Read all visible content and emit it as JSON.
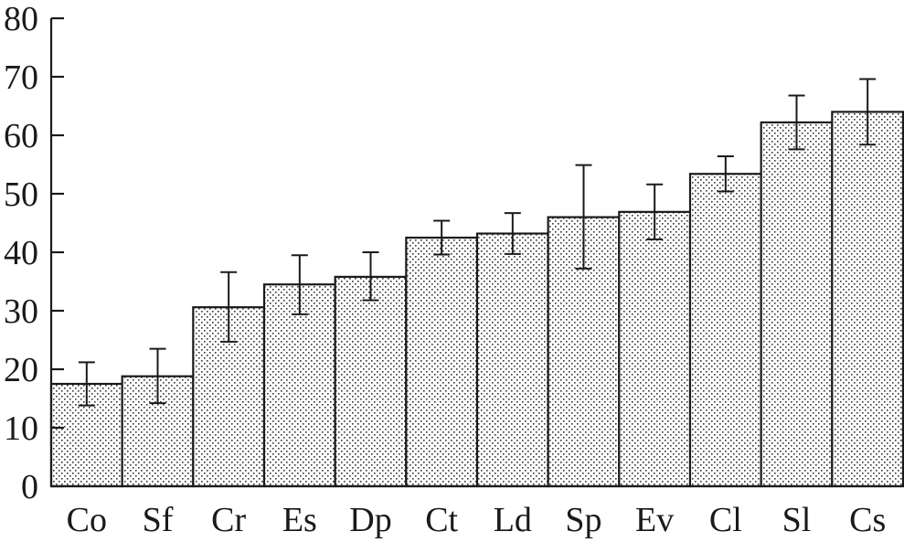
{
  "chart_data": {
    "type": "bar",
    "title": "",
    "xlabel": "",
    "ylabel": "",
    "ylim": [
      0,
      80
    ],
    "yticks": [
      0,
      10,
      20,
      30,
      40,
      50,
      60,
      70,
      80
    ],
    "grid": false,
    "categories": [
      "Co",
      "Sf",
      "Cr",
      "Es",
      "Dp",
      "Ct",
      "Ld",
      "Sp",
      "Ev",
      "Cl",
      "Sl",
      "Cs"
    ],
    "values": [
      17.5,
      18.8,
      30.6,
      34.5,
      35.8,
      42.5,
      43.2,
      46.0,
      46.9,
      53.4,
      62.2,
      64.0
    ],
    "error_low": [
      13.8,
      14.2,
      24.7,
      29.4,
      31.8,
      39.6,
      39.7,
      37.2,
      42.2,
      50.4,
      57.6,
      58.4
    ],
    "error_high": [
      21.2,
      23.5,
      36.6,
      39.5,
      40.0,
      45.4,
      46.7,
      54.9,
      51.6,
      56.4,
      66.8,
      69.6
    ],
    "bar_fill": "stippled"
  }
}
